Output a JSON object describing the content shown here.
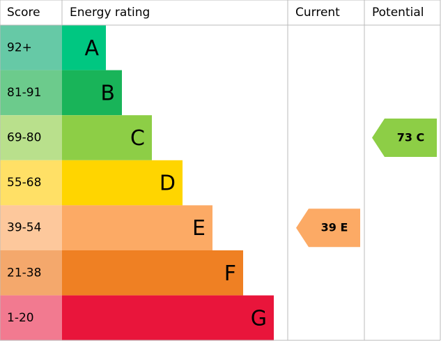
{
  "header": {
    "score": "Score",
    "rating": "Energy rating",
    "current": "Current",
    "potential": "Potential"
  },
  "bands": [
    {
      "score": "92+",
      "letter": "A",
      "color": "#00c781",
      "score_color": "#66c9a6"
    },
    {
      "score": "81-91",
      "letter": "B",
      "color": "#19b459",
      "score_color": "#6ccb8c"
    },
    {
      "score": "69-80",
      "letter": "C",
      "color": "#8dce46",
      "score_color": "#b9e08c"
    },
    {
      "score": "55-68",
      "letter": "D",
      "color": "#ffd500",
      "score_color": "#ffe066"
    },
    {
      "score": "39-54",
      "letter": "E",
      "color": "#fcaa65",
      "score_color": "#fdc89c"
    },
    {
      "score": "21-38",
      "letter": "F",
      "color": "#ef8023",
      "score_color": "#f4a86c"
    },
    {
      "score": "1-20",
      "letter": "G",
      "color": "#e9153b",
      "score_color": "#f27a90"
    }
  ],
  "current": {
    "score": 39,
    "rating": "E"
  },
  "potential": {
    "score": 73,
    "rating": "C"
  }
}
